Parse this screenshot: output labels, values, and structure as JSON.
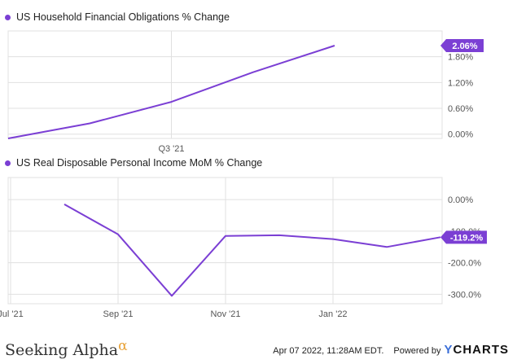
{
  "colors": {
    "series": "#7b3fd4",
    "grid": "#e0e0e0",
    "badge": "#7b3fd4"
  },
  "footer": {
    "brand_left": "Seeking Alpha",
    "brand_left_symbol": "α",
    "timestamp": "Apr 07 2022, 11:28AM EDT.",
    "powered_by": "Powered by",
    "brand_right_first": "Y",
    "brand_right_rest": "CHARTS"
  },
  "chart_data": [
    {
      "type": "line",
      "title": "US Household Financial Obligations % Change",
      "x": [
        "2021-01",
        "2021-04",
        "2021-07",
        "2021-10",
        "2022-01"
      ],
      "series": [
        {
          "name": "US Household Financial Obligations % Change",
          "values": [
            -0.1,
            0.25,
            0.75,
            1.44,
            2.06
          ]
        }
      ],
      "last_value_label": "2.06%",
      "x_tick_labels": [
        "Q3 '21"
      ],
      "x_tick_positions": [
        "2021-07"
      ],
      "y_tick_labels": [
        "0.00%",
        "0.60%",
        "1.20%",
        "1.80%"
      ],
      "y_tick_values": [
        0,
        0.6,
        1.2,
        1.8
      ],
      "ylim": [
        -0.1,
        2.4
      ],
      "grid": true,
      "legend": "top-left"
    },
    {
      "type": "line",
      "title": "US Real Disposable Personal Income MoM % Change",
      "x": [
        "2021-08",
        "2021-09",
        "2021-10",
        "2021-11",
        "2021-12",
        "2022-01",
        "2022-02",
        "2022-03"
      ],
      "series": [
        {
          "name": "US Real Disposable Personal Income MoM % Change",
          "values": [
            -15,
            -110,
            -305,
            -115,
            -113,
            -125,
            -150,
            -119.2
          ]
        }
      ],
      "last_value_label": "-119.2%",
      "x_tick_labels": [
        "Jul '21",
        "Sep '21",
        "Nov '21",
        "Jan '22"
      ],
      "x_tick_positions": [
        "2021-07",
        "2021-09",
        "2021-11",
        "2022-01"
      ],
      "y_tick_labels": [
        "0.00%",
        "-100.0%",
        "-200.0%",
        "-300.0%"
      ],
      "y_tick_values": [
        0,
        -100,
        -200,
        -300
      ],
      "ylim": [
        -330,
        70
      ],
      "grid": true,
      "legend": "top-left"
    }
  ]
}
